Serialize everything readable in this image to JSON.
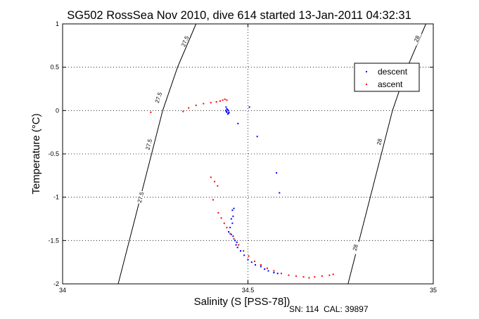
{
  "chart_data": {
    "type": "scatter",
    "title": "SG502 RossSea Nov 2010, dive 614 started 13-Jan-2011 04:32:31",
    "xlabel": "Salinity (S [PSS-78])",
    "ylabel": "Temperature (°C)",
    "xlim": [
      34,
      35
    ],
    "ylim": [
      -2,
      1
    ],
    "xticks": [
      34,
      34.5,
      35
    ],
    "xtick_labels": [
      "34",
      "34.5",
      "35"
    ],
    "yticks": [
      -2,
      -1.5,
      -1,
      -0.5,
      0,
      0.5,
      1
    ],
    "ytick_labels": [
      "-2",
      "-1.5",
      "-1",
      "-0.5",
      "0",
      "0.5",
      "1"
    ],
    "grid": true,
    "legend_position": "top-right",
    "footer": "SN: 114  CAL: 39897",
    "series": [
      {
        "name": "descent",
        "color": "#0000ff",
        "points": [
          [
            34.441,
            0.04
          ],
          [
            34.443,
            0.02
          ],
          [
            34.445,
            0.01
          ],
          [
            34.447,
            0.0
          ],
          [
            34.443,
            -0.02
          ],
          [
            34.448,
            -0.03
          ],
          [
            34.446,
            -0.04
          ],
          [
            34.44,
            0.0
          ],
          [
            34.442,
            -0.01
          ],
          [
            34.449,
            -0.02
          ],
          [
            34.504,
            0.04
          ],
          [
            34.473,
            -0.15
          ],
          [
            34.525,
            -0.3
          ],
          [
            34.577,
            -0.72
          ],
          [
            34.585,
            -0.95
          ],
          [
            34.462,
            -1.13
          ],
          [
            34.458,
            -1.15
          ],
          [
            34.46,
            -1.22
          ],
          [
            34.455,
            -1.25
          ],
          [
            34.458,
            -1.3
          ],
          [
            34.452,
            -1.35
          ],
          [
            34.448,
            -1.4
          ],
          [
            34.455,
            -1.43
          ],
          [
            34.46,
            -1.45
          ],
          [
            34.465,
            -1.5
          ],
          [
            34.47,
            -1.52
          ],
          [
            34.468,
            -1.55
          ],
          [
            34.472,
            -1.58
          ],
          [
            34.48,
            -1.62
          ],
          [
            34.49,
            -1.67
          ],
          [
            34.5,
            -1.72
          ],
          [
            34.51,
            -1.75
          ],
          [
            34.52,
            -1.78
          ],
          [
            34.535,
            -1.8
          ],
          [
            34.545,
            -1.83
          ],
          [
            34.555,
            -1.85
          ],
          [
            34.57,
            -1.87
          ],
          [
            34.58,
            -1.88
          ]
        ]
      },
      {
        "name": "ascent",
        "color": "#ff0000",
        "points": [
          [
            34.238,
            -0.02
          ],
          [
            34.325,
            -0.01
          ],
          [
            34.34,
            0.03
          ],
          [
            34.36,
            0.06
          ],
          [
            34.38,
            0.08
          ],
          [
            34.4,
            0.09
          ],
          [
            34.415,
            0.1
          ],
          [
            34.425,
            0.11
          ],
          [
            34.432,
            0.12
          ],
          [
            34.438,
            0.13
          ],
          [
            34.443,
            0.12
          ],
          [
            34.4,
            -0.77
          ],
          [
            34.41,
            -0.82
          ],
          [
            34.418,
            -0.87
          ],
          [
            34.406,
            -1.03
          ],
          [
            34.42,
            -1.18
          ],
          [
            34.428,
            -1.24
          ],
          [
            34.436,
            -1.3
          ],
          [
            34.443,
            -1.35
          ],
          [
            34.452,
            -1.42
          ],
          [
            34.462,
            -1.48
          ],
          [
            34.475,
            -1.55
          ],
          [
            34.488,
            -1.62
          ],
          [
            34.502,
            -1.68
          ],
          [
            34.518,
            -1.74
          ],
          [
            34.535,
            -1.78
          ],
          [
            34.552,
            -1.82
          ],
          [
            34.57,
            -1.85
          ],
          [
            34.59,
            -1.88
          ],
          [
            34.61,
            -1.9
          ],
          [
            34.63,
            -1.91
          ],
          [
            34.65,
            -1.92
          ],
          [
            34.665,
            -1.93
          ],
          [
            34.68,
            -1.92
          ],
          [
            34.7,
            -1.91
          ],
          [
            34.72,
            -1.9
          ],
          [
            34.73,
            -1.89
          ]
        ]
      }
    ],
    "contours": [
      {
        "level": "27.5",
        "points": [
          [
            34.15,
            -2.0
          ],
          [
            34.18,
            -1.5
          ],
          [
            34.21,
            -1.0
          ],
          [
            34.24,
            -0.5
          ],
          [
            34.27,
            0.0
          ],
          [
            34.31,
            0.5
          ],
          [
            34.36,
            1.0
          ]
        ],
        "labels": [
          [
            34.21,
            -1.0
          ],
          [
            34.232,
            -0.39
          ],
          [
            34.258,
            0.15
          ],
          [
            34.33,
            0.8
          ]
        ]
      },
      {
        "level": "28",
        "points": [
          [
            34.77,
            -2.0
          ],
          [
            34.8,
            -1.5
          ],
          [
            34.83,
            -1.0
          ],
          [
            34.86,
            -0.5
          ],
          [
            34.89,
            0.0
          ],
          [
            34.93,
            0.5
          ],
          [
            34.98,
            1.0
          ]
        ],
        "labels": [
          [
            34.789,
            -1.58
          ],
          [
            34.854,
            -0.36
          ],
          [
            34.955,
            0.83
          ]
        ]
      }
    ]
  }
}
